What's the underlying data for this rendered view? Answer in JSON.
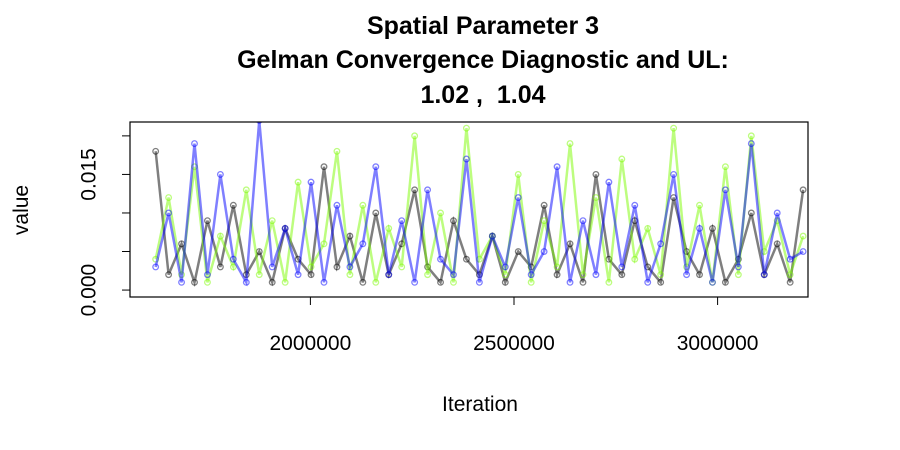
{
  "chart_data": {
    "type": "line",
    "title": [
      "Spatial Parameter 3",
      "Gelman Convergence Diagnostic and UL:",
      "1.02 ,  1.04"
    ],
    "xlabel": "Iteration",
    "ylabel": "value",
    "x": [
      1620000,
      1651800,
      1683600,
      1715400,
      1747200,
      1779000,
      1810800,
      1842600,
      1874400,
      1906200,
      1938000,
      1969800,
      2001600,
      2033400,
      2065200,
      2097000,
      2128800,
      2160600,
      2192400,
      2224200,
      2256000,
      2287800,
      2319600,
      2351400,
      2383200,
      2415000,
      2446800,
      2478600,
      2510400,
      2542200,
      2574000,
      2605800,
      2637600,
      2669400,
      2701200,
      2733000,
      2764800,
      2796600,
      2828400,
      2860200,
      2892000,
      2923800,
      2955600,
      2987400,
      3019200,
      3051000,
      3082800,
      3114600,
      3146400,
      3178200,
      3210000
    ],
    "series": [
      {
        "color": "rgba(0,0,0,0.5)",
        "values": [
          0.018,
          0.002,
          0.006,
          0.001,
          0.009,
          0.003,
          0.011,
          0.002,
          0.005,
          0.001,
          0.008,
          0.004,
          0.002,
          0.016,
          0.003,
          0.007,
          0.001,
          0.01,
          0.002,
          0.006,
          0.013,
          0.003,
          0.001,
          0.009,
          0.004,
          0.002,
          0.007,
          0.001,
          0.005,
          0.003,
          0.011,
          0.002,
          0.006,
          0.001,
          0.015,
          0.004,
          0.002,
          0.009,
          0.003,
          0.001,
          0.012,
          0.005,
          0.002,
          0.008,
          0.001,
          0.004,
          0.01,
          0.002,
          0.006,
          0.001,
          0.013
        ]
      },
      {
        "color": "rgba(124,252,0,0.5)",
        "values": [
          0.004,
          0.012,
          0.002,
          0.016,
          0.001,
          0.007,
          0.003,
          0.013,
          0.002,
          0.009,
          0.001,
          0.014,
          0.003,
          0.006,
          0.018,
          0.002,
          0.011,
          0.001,
          0.008,
          0.003,
          0.02,
          0.002,
          0.01,
          0.001,
          0.021,
          0.004,
          0.007,
          0.002,
          0.015,
          0.001,
          0.009,
          0.003,
          0.019,
          0.002,
          0.012,
          0.001,
          0.017,
          0.004,
          0.008,
          0.002,
          0.021,
          0.003,
          0.011,
          0.001,
          0.016,
          0.002,
          0.02,
          0.005,
          0.009,
          0.002,
          0.007
        ]
      },
      {
        "color": "rgba(0,0,255,0.5)",
        "values": [
          0.003,
          0.01,
          0.001,
          0.019,
          0.002,
          0.015,
          0.004,
          0.001,
          0.022,
          0.003,
          0.008,
          0.002,
          0.014,
          0.001,
          0.011,
          0.003,
          0.006,
          0.016,
          0.002,
          0.009,
          0.001,
          0.013,
          0.004,
          0.002,
          0.017,
          0.001,
          0.007,
          0.003,
          0.012,
          0.002,
          0.005,
          0.016,
          0.001,
          0.009,
          0.002,
          0.014,
          0.003,
          0.011,
          0.001,
          0.006,
          0.015,
          0.002,
          0.008,
          0.001,
          0.013,
          0.003,
          0.019,
          0.002,
          0.01,
          0.004,
          0.005
        ]
      }
    ],
    "xlim": [
      1557000,
      3222000
    ],
    "xticks": [
      2000000,
      2500000,
      3000000
    ],
    "ylim": [
      -0.0009,
      0.0218
    ],
    "yticks": [
      {
        "value": 0,
        "label": "0.000"
      },
      0.005,
      0.01,
      {
        "value": 0.015,
        "label": "0.015"
      },
      0.02
    ]
  }
}
